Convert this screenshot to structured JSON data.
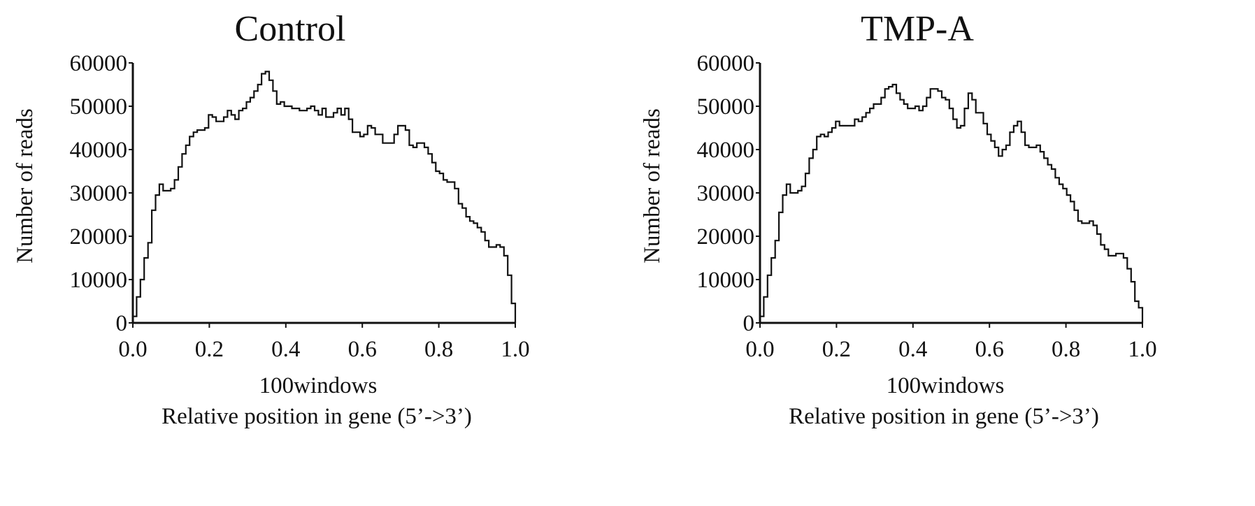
{
  "chart_data": [
    {
      "type": "line",
      "title": "Control",
      "xlabel": "100windows",
      "xlabel2": "Relative position in gene (5’->3’)",
      "ylabel": "Number of reads",
      "xlim": [
        0,
        1
      ],
      "ylim": [
        0,
        60000
      ],
      "xticks": [
        "0.0",
        "0.2",
        "0.4",
        "0.6",
        "0.8",
        "1.0"
      ],
      "yticks": [
        "0",
        "10000",
        "20000",
        "30000",
        "40000",
        "50000",
        "60000"
      ],
      "grid": false,
      "series": [
        {
          "values": [
            1500,
            6000,
            10000,
            15000,
            18500,
            26000,
            29500,
            32000,
            30500,
            30500,
            31000,
            33000,
            36000,
            39000,
            41000,
            43000,
            44000,
            44500,
            44500,
            45000,
            48000,
            47500,
            46500,
            46500,
            47500,
            49000,
            48000,
            47000,
            49000,
            49500,
            51000,
            52000,
            53500,
            55000,
            57500,
            58000,
            56000,
            53500,
            50500,
            51000,
            50000,
            50000,
            49500,
            49500,
            49000,
            49000,
            49500,
            50000,
            49000,
            48000,
            49500,
            47500,
            47500,
            48500,
            49500,
            48000,
            49500,
            47000,
            44000,
            44000,
            43000,
            43500,
            45500,
            45000,
            43500,
            43500,
            41500,
            41500,
            41500,
            43500,
            45500,
            45500,
            44500,
            41000,
            40500,
            41500,
            41500,
            40500,
            39000,
            37000,
            35000,
            34500,
            33000,
            32500,
            32500,
            31000,
            27500,
            26500,
            24500,
            23500,
            23000,
            22000,
            21000,
            19000,
            17500,
            17500,
            18000,
            17500,
            15500,
            11000,
            4500
          ]
        }
      ]
    },
    {
      "type": "line",
      "title": "TMP-A",
      "xlabel": "100windows",
      "xlabel2": "Relative position in gene (5’->3’)",
      "ylabel": "Number of reads",
      "xlim": [
        0,
        1
      ],
      "ylim": [
        0,
        60000
      ],
      "xticks": [
        "0.0",
        "0.2",
        "0.4",
        "0.6",
        "0.8",
        "1.0"
      ],
      "yticks": [
        "0",
        "10000",
        "20000",
        "30000",
        "40000",
        "50000",
        "60000"
      ],
      "grid": false,
      "series": [
        {
          "values": [
            1500,
            6000,
            11000,
            15000,
            19000,
            25500,
            29500,
            32000,
            30000,
            30000,
            30500,
            31500,
            34500,
            38000,
            40000,
            43000,
            43500,
            43000,
            44000,
            45000,
            46500,
            45500,
            45500,
            45500,
            45500,
            47000,
            46500,
            47500,
            48500,
            49500,
            50500,
            50500,
            52000,
            54000,
            54500,
            55000,
            53000,
            51500,
            50500,
            49500,
            49500,
            50000,
            49000,
            50000,
            52000,
            54000,
            54000,
            53500,
            52000,
            51500,
            49500,
            47000,
            45000,
            45500,
            49500,
            53000,
            51500,
            48500,
            48500,
            46000,
            43500,
            42000,
            40500,
            38500,
            40000,
            41000,
            44000,
            45500,
            46500,
            44000,
            41000,
            40500,
            40500,
            41000,
            39500,
            38000,
            36500,
            35500,
            33500,
            32000,
            31000,
            29500,
            28000,
            26000,
            23500,
            23000,
            23000,
            23500,
            22500,
            20500,
            18000,
            17000,
            15500,
            15500,
            16000,
            16000,
            15000,
            12500,
            9500,
            5000,
            3500
          ]
        }
      ]
    }
  ]
}
